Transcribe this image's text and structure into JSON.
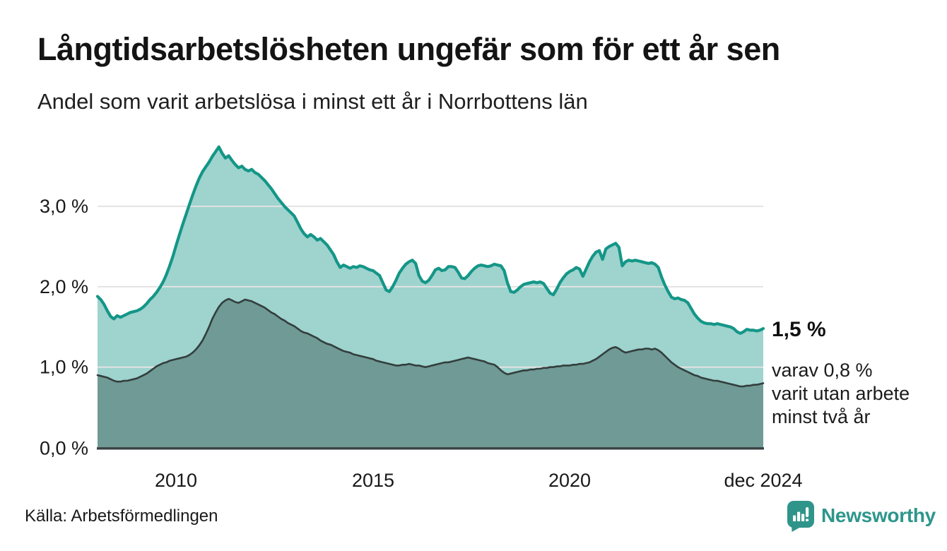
{
  "header": {
    "title": "Långtidsarbetslösheten ungefär som för ett år sen",
    "subtitle": "Andel som varit arbetslösa i minst ett år i Norrbottens län"
  },
  "chart_data": {
    "type": "area",
    "title": "Långtidsarbetslösheten ungefär som för ett år sen",
    "subtitle": "Andel som varit arbetslösa i minst ett år i Norrbottens län",
    "unit": "%",
    "x_start_year": 2008,
    "x_step_months": 1,
    "x_end_label": "dec 2024",
    "x_tick_labels": [
      "2010",
      "2015",
      "2020",
      "dec 2024"
    ],
    "y_tick_labels": [
      "0,0 %",
      "1,0 %",
      "2,0 %",
      "3,0 %"
    ],
    "y_tick_values": [
      0,
      1,
      2,
      3
    ],
    "ylim": [
      0,
      3.9
    ],
    "grid": "horizontal",
    "legend_position": "none",
    "colors": {
      "total_line": "#149687",
      "total_fill": "#9ed3ce",
      "two_year_line": "#333e3d",
      "two_year_fill": "#6f9a95",
      "axis": "#3a4243",
      "gridline": "#e3e3e3",
      "brand_teal": "#2d968c"
    },
    "series": [
      {
        "name": "Andel som varit arbetslösa i minst ett år",
        "values": [
          1.88,
          1.84,
          1.78,
          1.7,
          1.63,
          1.6,
          1.64,
          1.62,
          1.64,
          1.66,
          1.68,
          1.69,
          1.7,
          1.72,
          1.75,
          1.79,
          1.84,
          1.88,
          1.93,
          1.99,
          2.06,
          2.15,
          2.26,
          2.38,
          2.52,
          2.65,
          2.78,
          2.9,
          3.02,
          3.14,
          3.25,
          3.35,
          3.43,
          3.49,
          3.55,
          3.62,
          3.68,
          3.74,
          3.66,
          3.6,
          3.63,
          3.57,
          3.52,
          3.48,
          3.5,
          3.46,
          3.44,
          3.46,
          3.42,
          3.4,
          3.36,
          3.32,
          3.27,
          3.22,
          3.16,
          3.1,
          3.05,
          3.0,
          2.96,
          2.92,
          2.88,
          2.8,
          2.72,
          2.66,
          2.62,
          2.65,
          2.62,
          2.58,
          2.6,
          2.56,
          2.52,
          2.46,
          2.4,
          2.31,
          2.24,
          2.27,
          2.25,
          2.23,
          2.25,
          2.24,
          2.26,
          2.25,
          2.23,
          2.21,
          2.2,
          2.17,
          2.14,
          2.05,
          1.96,
          1.94,
          2.0,
          2.08,
          2.17,
          2.23,
          2.28,
          2.31,
          2.33,
          2.29,
          2.14,
          2.07,
          2.05,
          2.08,
          2.14,
          2.21,
          2.23,
          2.2,
          2.21,
          2.25,
          2.25,
          2.24,
          2.18,
          2.11,
          2.1,
          2.14,
          2.19,
          2.23,
          2.26,
          2.27,
          2.26,
          2.25,
          2.26,
          2.28,
          2.27,
          2.26,
          2.2,
          2.05,
          1.94,
          1.93,
          1.96,
          2.0,
          2.03,
          2.04,
          2.05,
          2.06,
          2.05,
          2.06,
          2.04,
          1.98,
          1.92,
          1.9,
          1.97,
          2.05,
          2.11,
          2.16,
          2.19,
          2.21,
          2.24,
          2.22,
          2.13,
          2.22,
          2.31,
          2.38,
          2.43,
          2.45,
          2.34,
          2.47,
          2.5,
          2.52,
          2.54,
          2.49,
          2.26,
          2.31,
          2.33,
          2.32,
          2.33,
          2.32,
          2.31,
          2.3,
          2.29,
          2.3,
          2.28,
          2.24,
          2.12,
          2.02,
          1.94,
          1.87,
          1.85,
          1.86,
          1.84,
          1.83,
          1.8,
          1.73,
          1.66,
          1.61,
          1.57,
          1.55,
          1.54,
          1.54,
          1.53,
          1.54,
          1.53,
          1.52,
          1.51,
          1.5,
          1.48,
          1.44,
          1.42,
          1.44,
          1.47,
          1.46,
          1.46,
          1.45,
          1.46,
          1.48
        ]
      },
      {
        "name": "varav andel som varit utan arbete minst två år",
        "values": [
          0.9,
          0.89,
          0.88,
          0.87,
          0.85,
          0.83,
          0.82,
          0.82,
          0.83,
          0.83,
          0.84,
          0.85,
          0.86,
          0.88,
          0.9,
          0.92,
          0.95,
          0.98,
          1.01,
          1.03,
          1.05,
          1.06,
          1.08,
          1.09,
          1.1,
          1.11,
          1.12,
          1.13,
          1.15,
          1.18,
          1.22,
          1.27,
          1.33,
          1.41,
          1.5,
          1.6,
          1.68,
          1.75,
          1.8,
          1.83,
          1.85,
          1.83,
          1.81,
          1.8,
          1.82,
          1.84,
          1.83,
          1.82,
          1.8,
          1.78,
          1.76,
          1.74,
          1.71,
          1.68,
          1.66,
          1.63,
          1.6,
          1.58,
          1.55,
          1.53,
          1.51,
          1.48,
          1.45,
          1.43,
          1.42,
          1.4,
          1.38,
          1.36,
          1.33,
          1.31,
          1.29,
          1.28,
          1.26,
          1.24,
          1.22,
          1.2,
          1.19,
          1.18,
          1.16,
          1.15,
          1.14,
          1.13,
          1.12,
          1.11,
          1.1,
          1.08,
          1.07,
          1.06,
          1.05,
          1.04,
          1.03,
          1.02,
          1.02,
          1.03,
          1.03,
          1.04,
          1.03,
          1.02,
          1.02,
          1.01,
          1.0,
          1.01,
          1.02,
          1.03,
          1.04,
          1.05,
          1.06,
          1.06,
          1.07,
          1.08,
          1.09,
          1.1,
          1.11,
          1.12,
          1.11,
          1.1,
          1.09,
          1.08,
          1.07,
          1.05,
          1.04,
          1.03,
          1.0,
          0.96,
          0.93,
          0.91,
          0.92,
          0.93,
          0.94,
          0.95,
          0.96,
          0.96,
          0.97,
          0.97,
          0.98,
          0.98,
          0.99,
          0.99,
          1.0,
          1.0,
          1.01,
          1.01,
          1.02,
          1.02,
          1.02,
          1.03,
          1.03,
          1.04,
          1.04,
          1.05,
          1.06,
          1.08,
          1.1,
          1.13,
          1.16,
          1.19,
          1.22,
          1.24,
          1.25,
          1.23,
          1.2,
          1.18,
          1.19,
          1.2,
          1.21,
          1.22,
          1.22,
          1.23,
          1.23,
          1.22,
          1.23,
          1.21,
          1.18,
          1.14,
          1.1,
          1.06,
          1.03,
          1.0,
          0.98,
          0.96,
          0.94,
          0.92,
          0.9,
          0.89,
          0.87,
          0.86,
          0.85,
          0.84,
          0.83,
          0.83,
          0.82,
          0.81,
          0.8,
          0.79,
          0.78,
          0.77,
          0.76,
          0.76,
          0.77,
          0.77,
          0.78,
          0.78,
          0.79,
          0.8
        ]
      }
    ],
    "annotations": {
      "latest_total": "1,5 %",
      "varav_line1": "varav 0,8 %",
      "varav_line2": "varit utan arbete",
      "varav_line3": "minst två år"
    }
  },
  "footer": {
    "source": "Källa: Arbetsförmedlingen",
    "logo_text": "Newsworthy",
    "logo_icon": "bar-chart-speech-bubble-icon"
  }
}
